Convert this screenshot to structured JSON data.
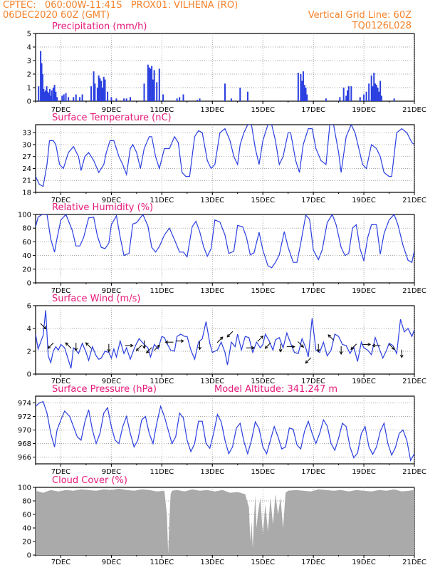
{
  "header": {
    "line1_left": "CPTEC:   060:00W-11:41S   PROX01: VILHENA (RO)",
    "line2_left": "06DEC2020 60Z (GMT)",
    "line2_right": "Vertical Grid Line: 60Z",
    "line3_right": "TQ0126L028"
  },
  "colors": {
    "header": "#f5822a",
    "title": "#e6197a",
    "series": "#2a3fe0",
    "cloud": "#aaaaaa",
    "grid": "#888888"
  },
  "x_ticks": [
    "7DEC",
    "9DEC",
    "11DEC",
    "13DEC",
    "15DEC",
    "17DEC",
    "19DEC",
    "21DEC"
  ],
  "chart_data": [
    {
      "id": "precip",
      "type": "bar",
      "title": "Precipitation (mm/h)",
      "ylim": [
        0,
        5
      ],
      "yticks": [
        "0",
        "1",
        "2",
        "3",
        "4",
        "5"
      ],
      "x_days": [
        6.12,
        6.2,
        6.24,
        6.28,
        6.32,
        6.36,
        6.4,
        6.44,
        6.48,
        6.52,
        6.56,
        6.6,
        6.64,
        6.7,
        6.75,
        6.8,
        6.85,
        7.05,
        7.12,
        7.2,
        7.3,
        7.5,
        7.6,
        7.75,
        7.85,
        8.2,
        8.3,
        8.35,
        8.45,
        8.5,
        8.55,
        8.6,
        8.65,
        8.7,
        8.75,
        8.85,
        9.0,
        9.2,
        9.5,
        9.6,
        9.75,
        10.3,
        10.45,
        10.5,
        10.55,
        10.6,
        10.65,
        10.7,
        10.8,
        10.9,
        11.05,
        11.6,
        11.7,
        11.85,
        12.4,
        12.5,
        13.5,
        13.75,
        14.1,
        14.4,
        16.4,
        16.5,
        16.55,
        16.6,
        16.65,
        16.7,
        16.75,
        17.5,
        18.05,
        18.2,
        18.3,
        18.35,
        18.4,
        18.5,
        18.85,
        19.0,
        19.1,
        19.2,
        19.3,
        19.35,
        19.4,
        19.45,
        19.5,
        19.55,
        19.6,
        19.65,
        19.7,
        20.2
      ],
      "values": [
        1.1,
        3.7,
        2.8,
        2.0,
        0.9,
        0.7,
        0.8,
        1.1,
        0.7,
        0.6,
        0.9,
        0.4,
        0.8,
        1.0,
        1.2,
        0.7,
        0.3,
        0.4,
        0.5,
        0.6,
        0.3,
        0.3,
        0.5,
        0.3,
        0.5,
        1.1,
        2.2,
        1.3,
        1.0,
        1.9,
        1.7,
        1.5,
        1.0,
        1.8,
        1.6,
        0.7,
        0.3,
        0.2,
        0.2,
        0.2,
        0.3,
        1.3,
        2.7,
        2.5,
        2.4,
        2.6,
        1.6,
        2.3,
        1.4,
        2.4,
        0.5,
        0.2,
        0.3,
        0.5,
        0.1,
        0.2,
        1.3,
        0.2,
        1.0,
        0.7,
        2.1,
        2.0,
        1.5,
        2.2,
        1.2,
        1.0,
        0.5,
        0.2,
        0.3,
        1.0,
        0.4,
        0.8,
        1.1,
        1.1,
        0.3,
        0.5,
        0.7,
        1.3,
        1.9,
        1.1,
        2.1,
        1.3,
        1.2,
        1.0,
        0.7,
        1.5,
        0.4,
        0.2
      ]
    },
    {
      "id": "temp",
      "type": "line",
      "title": "Surface Temperature (nC)",
      "ylim": [
        18,
        35
      ],
      "yticks": [
        "18",
        "21",
        "24",
        "27",
        "30",
        "33"
      ],
      "x_days": [
        6.0,
        6.15,
        6.3,
        6.45,
        6.55,
        6.7,
        6.8,
        6.95,
        7.1,
        7.3,
        7.5,
        7.7,
        7.8,
        7.95,
        8.1,
        8.3,
        8.5,
        8.7,
        8.8,
        8.95,
        9.1,
        9.3,
        9.45,
        9.6,
        9.75,
        9.85,
        10.0,
        10.15,
        10.3,
        10.5,
        10.6,
        10.75,
        10.9,
        11.1,
        11.3,
        11.5,
        11.65,
        11.8,
        11.95,
        12.1,
        12.3,
        12.45,
        12.6,
        12.8,
        12.95,
        13.1,
        13.3,
        13.5,
        13.7,
        13.85,
        14.0,
        14.1,
        14.25,
        14.4,
        14.55,
        14.7,
        14.85,
        15.0,
        15.2,
        15.35,
        15.5,
        15.65,
        15.8,
        16.0,
        16.1,
        16.3,
        16.45,
        16.6,
        16.8,
        16.95,
        17.1,
        17.3,
        17.5,
        17.65,
        17.8,
        18.0,
        18.1,
        18.3,
        18.5,
        18.65,
        18.8,
        18.95,
        19.1,
        19.3,
        19.5,
        19.65,
        19.8,
        20.0,
        20.1,
        20.3,
        20.5,
        20.7,
        20.9,
        21.0
      ],
      "values": [
        22,
        20,
        19.5,
        25,
        31,
        31,
        30,
        25,
        24,
        28,
        29.5,
        27,
        23.5,
        27,
        28,
        26,
        23,
        25,
        28,
        31,
        31,
        27,
        25,
        22.5,
        29,
        30,
        28,
        24,
        29,
        32,
        32,
        27,
        24,
        29,
        29,
        32,
        30.5,
        23,
        22,
        22,
        32,
        33.5,
        33,
        26,
        24,
        25,
        33,
        34,
        31,
        27,
        25,
        30,
        33,
        35,
        35,
        29,
        25,
        31,
        35,
        35,
        31,
        25,
        27,
        33,
        33,
        26,
        23,
        30,
        34,
        34,
        29,
        26,
        25,
        35,
        35,
        28,
        23,
        32,
        35,
        33,
        29,
        25,
        24,
        30,
        29,
        27,
        23,
        22,
        22,
        33,
        34,
        33,
        30.5,
        30
      ]
    },
    {
      "id": "rh",
      "type": "line",
      "title": "Relative Humidity (%)",
      "ylim": [
        0,
        100
      ],
      "yticks": [
        "0",
        "20",
        "40",
        "60",
        "80",
        "100"
      ],
      "x_days": [
        6.0,
        6.1,
        6.25,
        6.45,
        6.6,
        6.75,
        6.85,
        7.0,
        7.2,
        7.45,
        7.6,
        7.75,
        7.9,
        8.1,
        8.3,
        8.45,
        8.6,
        8.75,
        8.9,
        9.0,
        9.2,
        9.35,
        9.5,
        9.7,
        9.85,
        10.0,
        10.25,
        10.45,
        10.6,
        10.75,
        10.9,
        11.1,
        11.3,
        11.5,
        11.7,
        11.85,
        12.0,
        12.2,
        12.35,
        12.5,
        12.65,
        12.8,
        12.95,
        13.1,
        13.3,
        13.5,
        13.65,
        13.85,
        14.0,
        14.2,
        14.35,
        14.5,
        14.65,
        14.85,
        15.0,
        15.2,
        15.35,
        15.5,
        15.65,
        15.85,
        16.0,
        16.2,
        16.35,
        16.5,
        16.7,
        16.85,
        17.0,
        17.2,
        17.35,
        17.55,
        17.75,
        17.9,
        18.1,
        18.25,
        18.4,
        18.55,
        18.7,
        18.85,
        19.0,
        19.15,
        19.3,
        19.5,
        19.65,
        19.8,
        20.0,
        20.2,
        20.35,
        20.55,
        20.75,
        20.9,
        21.0
      ],
      "values": [
        82,
        96,
        100,
        100,
        64,
        45,
        65,
        92,
        100,
        77,
        54,
        54,
        66,
        95,
        96,
        68,
        52,
        50,
        58,
        85,
        98,
        67,
        40,
        43,
        86,
        88,
        100,
        83,
        52,
        45,
        53,
        70,
        80,
        63,
        45,
        45,
        38,
        82,
        90,
        75,
        53,
        39,
        50,
        92,
        89,
        70,
        43,
        46,
        84,
        82,
        67,
        41,
        44,
        74,
        48,
        25,
        22,
        30,
        41,
        75,
        52,
        30,
        30,
        58,
        99,
        93,
        48,
        34,
        48,
        88,
        100,
        85,
        52,
        40,
        43,
        80,
        85,
        50,
        32,
        66,
        85,
        85,
        42,
        72,
        92,
        100,
        85,
        55,
        33,
        30,
        47
      ]
    },
    {
      "id": "wind",
      "type": "line",
      "title": "Surface Wind (m/s)",
      "ylim": [
        0,
        6
      ],
      "yticks": [
        "0",
        "2",
        "4",
        "6"
      ],
      "x_days": [
        6.0,
        6.1,
        6.2,
        6.3,
        6.4,
        6.5,
        6.6,
        6.7,
        6.8,
        6.9,
        7.0,
        7.15,
        7.25,
        7.4,
        7.5,
        7.6,
        7.7,
        7.85,
        8.0,
        8.1,
        8.25,
        8.4,
        8.5,
        8.6,
        8.75,
        8.9,
        9.0,
        9.1,
        9.2,
        9.35,
        9.5,
        9.6,
        9.75,
        9.9,
        10.0,
        10.1,
        10.3,
        10.45,
        10.55,
        10.7,
        10.85,
        11.0,
        11.1,
        11.2,
        11.35,
        11.5,
        11.6,
        11.75,
        11.9,
        12.0,
        12.15,
        12.3,
        12.45,
        12.6,
        12.75,
        12.9,
        13.0,
        13.2,
        13.35,
        13.5,
        13.6,
        13.75,
        13.9,
        14.0,
        14.15,
        14.3,
        14.45,
        14.6,
        14.75,
        14.9,
        15.0,
        15.1,
        15.25,
        15.4,
        15.5,
        15.65,
        15.8,
        15.95,
        16.1,
        16.25,
        16.4,
        16.55,
        16.7,
        16.8,
        16.95,
        17.1,
        17.25,
        17.4,
        17.55,
        17.7,
        17.85,
        18.0,
        18.15,
        18.3,
        18.45,
        18.6,
        18.75,
        18.9,
        19.0,
        19.15,
        19.3,
        19.45,
        19.6,
        19.75,
        19.9,
        20.0,
        20.15,
        20.3,
        20.45,
        20.6,
        20.75,
        20.9,
        21.0
      ],
      "values": [
        3.5,
        2.2,
        2.8,
        3.4,
        5.6,
        1.6,
        1.0,
        2.0,
        2.4,
        2.1,
        2.6,
        2.3,
        1.6,
        0.5,
        2.3,
        2.1,
        1.8,
        2.7,
        1.9,
        1.2,
        2.4,
        1.6,
        1.3,
        1.4,
        2.0,
        1.9,
        1.4,
        2.2,
        1.5,
        2.9,
        1.8,
        2.3,
        1.3,
        2.2,
        2.7,
        3.1,
        2.6,
        2.3,
        1.5,
        2.6,
        2.2,
        3.3,
        3.2,
        2.7,
        2.1,
        2.0,
        3.3,
        3.5,
        3.3,
        3.3,
        2.1,
        1.3,
        2.8,
        3.1,
        4.6,
        2.7,
        1.9,
        2.1,
        2.8,
        1.9,
        0.8,
        2.8,
        2.4,
        3.5,
        2.1,
        3.3,
        3.2,
        1.9,
        2.8,
        2.3,
        2.6,
        3.5,
        2.9,
        2.1,
        3.0,
        3.2,
        2.3,
        3.6,
        2.7,
        1.9,
        1.8,
        3.1,
        2.3,
        1.5,
        4.9,
        2.1,
        1.9,
        2.8,
        1.6,
        2.1,
        3.5,
        3.3,
        2.6,
        2.5,
        1.8,
        2.4,
        1.1,
        2.8,
        2.3,
        2.1,
        1.7,
        3.2,
        2.3,
        1.4,
        2.1,
        2.7,
        2.5,
        1.8,
        4.8,
        3.7,
        4.0,
        3.3,
        3.9
      ],
      "arrows": [
        {
          "x": 6.3,
          "y": 4.2,
          "dir": "SE"
        },
        {
          "x": 6.6,
          "y": 2.5,
          "dir": "SW"
        },
        {
          "x": 7.3,
          "y": 2.5,
          "dir": "NW"
        },
        {
          "x": 7.6,
          "y": 2.4,
          "dir": "S"
        },
        {
          "x": 8.1,
          "y": 2.5,
          "dir": "NW"
        },
        {
          "x": 8.9,
          "y": 2.3,
          "dir": "S"
        },
        {
          "x": 9.7,
          "y": 2.5,
          "dir": "E"
        },
        {
          "x": 10.1,
          "y": 2.3,
          "dir": "SW"
        },
        {
          "x": 10.3,
          "y": 2.6,
          "dir": "S"
        },
        {
          "x": 10.5,
          "y": 2.1,
          "dir": "SW"
        },
        {
          "x": 10.8,
          "y": 2.3,
          "dir": "NE"
        },
        {
          "x": 11.3,
          "y": 2.8,
          "dir": "W"
        },
        {
          "x": 11.7,
          "y": 2.9,
          "dir": "E"
        },
        {
          "x": 12.5,
          "y": 2.5,
          "dir": "S"
        },
        {
          "x": 13.3,
          "y": 3.0,
          "dir": "NE"
        },
        {
          "x": 13.7,
          "y": 3.5,
          "dir": "SW"
        },
        {
          "x": 14.5,
          "y": 2.3,
          "dir": "E"
        },
        {
          "x": 14.9,
          "y": 3.1,
          "dir": "NE"
        },
        {
          "x": 15.2,
          "y": 2.5,
          "dir": "SW"
        },
        {
          "x": 15.7,
          "y": 2.3,
          "dir": "S"
        },
        {
          "x": 16.1,
          "y": 2.4,
          "dir": "E"
        },
        {
          "x": 16.5,
          "y": 2.6,
          "dir": "SE"
        },
        {
          "x": 16.8,
          "y": 1.2,
          "dir": "SW"
        },
        {
          "x": 17.2,
          "y": 2.3,
          "dir": "S"
        },
        {
          "x": 17.7,
          "y": 3.2,
          "dir": "NW"
        },
        {
          "x": 18.1,
          "y": 2.1,
          "dir": "S"
        },
        {
          "x": 18.6,
          "y": 2.4,
          "dir": "SW"
        },
        {
          "x": 19.1,
          "y": 2.6,
          "dir": "E"
        },
        {
          "x": 19.5,
          "y": 2.5,
          "dir": "W"
        },
        {
          "x": 20.1,
          "y": 2.4,
          "dir": "SE"
        },
        {
          "x": 20.5,
          "y": 1.8,
          "dir": "S"
        }
      ]
    },
    {
      "id": "press",
      "type": "line",
      "title": "Surface Pressure (hPa)",
      "subtitle": "Model Altitude: 341.247  m",
      "ylim": [
        965,
        975
      ],
      "yticks": [
        "966",
        "968",
        "970",
        "972",
        "974"
      ],
      "x_days": [
        6.0,
        6.15,
        6.3,
        6.45,
        6.6,
        6.75,
        6.85,
        7.0,
        7.15,
        7.35,
        7.5,
        7.65,
        7.8,
        7.95,
        8.1,
        8.25,
        8.4,
        8.55,
        8.7,
        8.85,
        9.0,
        9.15,
        9.3,
        9.45,
        9.6,
        9.75,
        9.9,
        10.05,
        10.2,
        10.35,
        10.5,
        10.65,
        10.8,
        10.95,
        11.1,
        11.25,
        11.4,
        11.55,
        11.7,
        11.85,
        12.0,
        12.15,
        12.3,
        12.45,
        12.6,
        12.75,
        12.9,
        13.05,
        13.2,
        13.35,
        13.5,
        13.65,
        13.8,
        13.95,
        14.1,
        14.25,
        14.4,
        14.55,
        14.7,
        14.85,
        15.0,
        15.15,
        15.3,
        15.45,
        15.6,
        15.75,
        15.9,
        16.05,
        16.2,
        16.35,
        16.5,
        16.65,
        16.8,
        16.95,
        17.1,
        17.25,
        17.4,
        17.55,
        17.7,
        17.85,
        18.0,
        18.15,
        18.3,
        18.45,
        18.6,
        18.75,
        18.9,
        19.05,
        19.2,
        19.35,
        19.5,
        19.65,
        19.8,
        19.95,
        20.1,
        20.25,
        20.4,
        20.55,
        20.7,
        20.85,
        21.0
      ],
      "values": [
        973.5,
        974,
        974.2,
        972.5,
        969.5,
        967.5,
        970,
        971.5,
        972.8,
        972,
        970.5,
        969,
        968.5,
        971.2,
        973,
        970,
        968,
        969.5,
        972.5,
        973.3,
        970.5,
        968.5,
        968,
        970.5,
        972,
        969.5,
        967.5,
        968.5,
        971.5,
        972,
        969.5,
        968,
        971,
        973.5,
        972,
        970,
        968,
        969,
        972.5,
        971.8,
        968.5,
        966.8,
        968,
        971.3,
        971.3,
        968,
        967.3,
        969.5,
        972.3,
        971.2,
        968.5,
        966.5,
        967.5,
        970.3,
        971,
        968.3,
        966.5,
        968.5,
        971.2,
        970.2,
        967.5,
        966.5,
        968.5,
        970.5,
        969,
        967.2,
        967.5,
        970.3,
        970.1,
        967.8,
        967.2,
        969.8,
        971.3,
        969.5,
        968,
        969.5,
        971.5,
        970.6,
        968,
        967,
        968.8,
        971,
        970.5,
        967.5,
        965.9,
        966.6,
        969.5,
        970.5,
        967.5,
        966.4,
        967.5,
        969.8,
        971,
        968,
        966.3,
        967.4,
        969.5,
        970,
        968.5,
        965.5,
        966.5
      ]
    },
    {
      "id": "cloud",
      "type": "area",
      "title": "Cloud Cover (%)",
      "ylim": [
        0,
        100
      ],
      "yticks": [
        "0",
        "20",
        "40",
        "60",
        "80",
        "100"
      ],
      "x_days": [
        6.0,
        6.3,
        6.6,
        6.9,
        7.2,
        7.5,
        7.8,
        8.1,
        8.4,
        8.7,
        9.0,
        9.3,
        9.6,
        9.9,
        10.2,
        10.5,
        10.8,
        11.1,
        11.2,
        11.25,
        11.3,
        11.35,
        11.4,
        11.6,
        11.9,
        12.2,
        12.5,
        12.8,
        13.1,
        13.4,
        13.7,
        14.0,
        14.3,
        14.45,
        14.5,
        14.55,
        14.6,
        14.65,
        14.7,
        14.75,
        14.8,
        14.9,
        15.0,
        15.1,
        15.2,
        15.3,
        15.4,
        15.5,
        15.6,
        15.7,
        15.8,
        15.9,
        16.0,
        16.3,
        16.6,
        16.9,
        17.2,
        17.5,
        17.8,
        18.1,
        18.4,
        18.7,
        19.0,
        19.3,
        19.6,
        19.9,
        20.2,
        20.5,
        20.8,
        21.0
      ],
      "values": [
        95,
        92,
        96,
        94,
        96,
        95,
        97,
        96,
        95,
        97,
        96,
        98,
        96,
        95,
        97,
        96,
        94,
        95,
        60,
        2,
        55,
        90,
        95,
        96,
        94,
        97,
        95,
        96,
        94,
        96,
        92,
        93,
        90,
        70,
        20,
        50,
        10,
        55,
        88,
        40,
        60,
        85,
        30,
        75,
        35,
        85,
        45,
        90,
        60,
        85,
        40,
        92,
        95,
        96,
        95,
        94,
        97,
        96,
        95,
        96,
        94,
        96,
        95,
        94,
        96,
        95,
        97,
        94,
        95,
        96
      ]
    }
  ]
}
